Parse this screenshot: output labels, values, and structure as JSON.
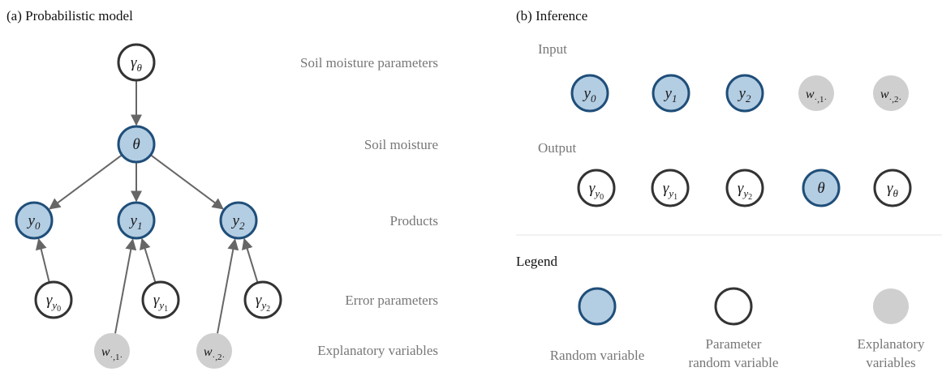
{
  "a": {
    "title": "(a) Probabilistic model",
    "levels": [
      "Soil moisture parameters",
      "Soil moisture",
      "Products",
      "Error parameters",
      "Explanatory variables"
    ],
    "nodes": [
      {
        "kind": "parameter",
        "base": "γ",
        "sub": "θ"
      },
      {
        "kind": "random",
        "base": "θ"
      },
      {
        "kind": "random",
        "base": "y",
        "sub": "0"
      },
      {
        "kind": "random",
        "base": "y",
        "sub": "1"
      },
      {
        "kind": "random",
        "base": "y",
        "sub": "2"
      },
      {
        "kind": "parameter",
        "base": "γ",
        "sub": "y",
        "subsub": "0"
      },
      {
        "kind": "parameter",
        "base": "γ",
        "sub": "y",
        "subsub": "1"
      },
      {
        "kind": "parameter",
        "base": "γ",
        "sub": "y",
        "subsub": "2"
      },
      {
        "kind": "explanatory",
        "base": "w",
        "sub": "·,1·"
      },
      {
        "kind": "explanatory",
        "base": "w",
        "sub": "·,2·"
      }
    ]
  },
  "b": {
    "title": "(b) Inference",
    "input": {
      "label": "Input",
      "nodes": [
        {
          "kind": "random",
          "base": "y",
          "sub": "0"
        },
        {
          "kind": "random",
          "base": "y",
          "sub": "1"
        },
        {
          "kind": "random",
          "base": "y",
          "sub": "2"
        },
        {
          "kind": "explanatory",
          "base": "w",
          "sub": "·,1·"
        },
        {
          "kind": "explanatory",
          "base": "w",
          "sub": "·,2·"
        }
      ]
    },
    "output": {
      "label": "Output",
      "nodes": [
        {
          "kind": "parameter",
          "base": "γ",
          "sub": "y",
          "subsub": "0"
        },
        {
          "kind": "parameter",
          "base": "γ",
          "sub": "y",
          "subsub": "1"
        },
        {
          "kind": "parameter",
          "base": "γ",
          "sub": "y",
          "subsub": "2"
        },
        {
          "kind": "random",
          "base": "θ"
        },
        {
          "kind": "parameter",
          "base": "γ",
          "sub": "θ"
        }
      ]
    },
    "legend": {
      "title": "Legend",
      "items": [
        {
          "kind": "random",
          "lines": [
            "Random variable"
          ]
        },
        {
          "kind": "parameter",
          "lines": [
            "Parameter",
            "random variable"
          ]
        },
        {
          "kind": "explanatory",
          "lines": [
            "Explanatory",
            "variables"
          ]
        }
      ]
    }
  }
}
